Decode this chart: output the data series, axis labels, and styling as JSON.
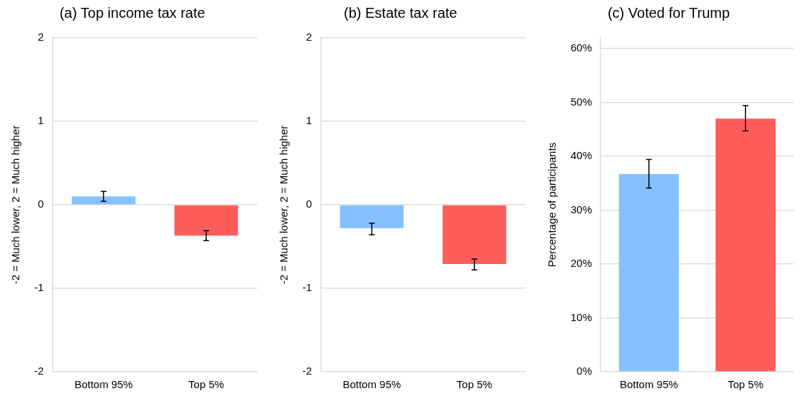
{
  "chart_data": [
    {
      "type": "bar",
      "title": "(a) Top income tax rate",
      "ylabel": "-2 = Much lower, 2 = Much higher",
      "categories": [
        "Bottom 95%",
        "Top 5%"
      ],
      "values": [
        0.1,
        -0.37
      ],
      "colors": [
        "#85c1ff",
        "#ff5c5c"
      ],
      "errors": [
        [
          0.04,
          0.16
        ],
        [
          -0.43,
          -0.31
        ]
      ],
      "ylim": [
        -2,
        2
      ],
      "yticks": [
        -2,
        -1,
        0,
        1,
        2
      ],
      "grid": "y",
      "legend": false
    },
    {
      "type": "bar",
      "title": "(b) Estate tax rate",
      "ylabel": "-2 = Much lower, 2 = Much higher",
      "categories": [
        "Bottom 95%",
        "Top 5%"
      ],
      "values": [
        -0.28,
        -0.71
      ],
      "colors": [
        "#85c1ff",
        "#ff5c5c"
      ],
      "errors": [
        [
          -0.36,
          -0.22
        ],
        [
          -0.78,
          -0.65
        ]
      ],
      "ylim": [
        -2,
        2
      ],
      "yticks": [
        -2,
        -1,
        0,
        1,
        2
      ],
      "grid": "y",
      "legend": false
    },
    {
      "type": "bar",
      "title": "(c) Voted for Trump",
      "ylabel": "Percentage of participants",
      "categories": [
        "Bottom 95%",
        "Top 5%"
      ],
      "values": [
        36.7,
        47.0
      ],
      "colors": [
        "#85c1ff",
        "#ff5c5c"
      ],
      "errors": [
        [
          34.1,
          39.4
        ],
        [
          44.7,
          49.4
        ]
      ],
      "ylim": [
        0,
        62
      ],
      "yticks": [
        {
          "value": 0,
          "label": "0%"
        },
        {
          "value": 10,
          "label": "10%"
        },
        {
          "value": 20,
          "label": "20%"
        },
        {
          "value": 30,
          "label": "30%"
        },
        {
          "value": 40,
          "label": "40%"
        },
        {
          "value": 50,
          "label": "50%"
        },
        {
          "value": 60,
          "label": "60%"
        }
      ],
      "grid": "y",
      "legend": false
    }
  ]
}
